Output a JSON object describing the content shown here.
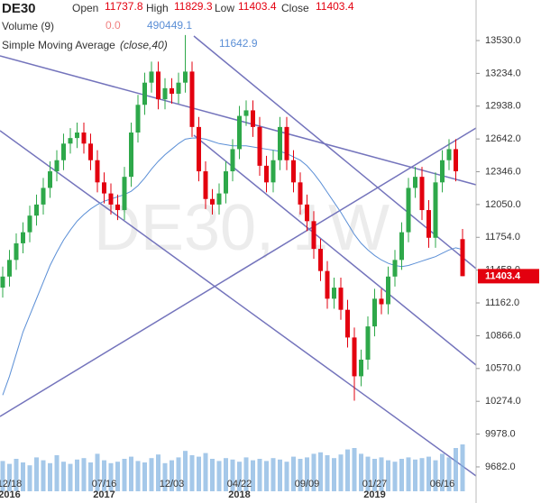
{
  "chart_data": {
    "type": "candlestick",
    "symbol": "DE30",
    "watermark": "DE30, 1W",
    "legend_labels": {
      "open": "Open",
      "high": "High",
      "low": "Low",
      "close": "Close"
    },
    "volume_label": "Volume (9)",
    "volume_value": "0.0",
    "volume_ma": 490449.1,
    "sma_label": "Simple Moving Average",
    "sma_params": "(close,40)",
    "up_color": "#2ea84a",
    "down_color": "#e3000f",
    "ylim": [
      9462,
      13896
    ],
    "yticks": [
      {
        "value": 13530,
        "label": "13530.0"
      },
      {
        "value": 13234,
        "label": "13234.0"
      },
      {
        "value": 12938,
        "label": "12938.0"
      },
      {
        "value": 12642,
        "label": "12642.0"
      },
      {
        "value": 12346,
        "label": "12346.0"
      },
      {
        "value": 12050,
        "label": "12050.0"
      },
      {
        "value": 11754,
        "label": "11754.0"
      },
      {
        "value": 11458,
        "label": "11458.0"
      },
      {
        "value": 11162,
        "label": "11162.0"
      },
      {
        "value": 10866,
        "label": "10866.0"
      },
      {
        "value": 10570,
        "label": "10570.0"
      },
      {
        "value": 10274,
        "label": "10274.0"
      },
      {
        "value": 9978,
        "label": "9978.0"
      },
      {
        "value": 9682,
        "label": "9682.0"
      }
    ],
    "x_labels": [
      {
        "index": 1,
        "date": "12/18",
        "year": "2016"
      },
      {
        "index": 15,
        "date": "07/16",
        "year": "2017"
      },
      {
        "index": 25,
        "date": "12/03"
      },
      {
        "index": 35,
        "date": "04/22",
        "year": "2018"
      },
      {
        "index": 45,
        "date": "09/09"
      },
      {
        "index": 55,
        "date": "01/27",
        "year": "2019"
      },
      {
        "index": 65,
        "date": "06/16"
      }
    ],
    "open": [
      11300,
      11400,
      11550,
      11700,
      11800,
      11950,
      12050,
      12200,
      12350,
      12450,
      12600,
      12650,
      12700,
      12600,
      12450,
      12250,
      12150,
      12050,
      12000,
      12300,
      12700,
      12950,
      13150,
      13250,
      13000,
      13100,
      13050,
      13150,
      13250,
      12750,
      12350,
      12100,
      12050,
      12150,
      12350,
      12550,
      12850,
      12900,
      12750,
      12400,
      12250,
      12450,
      12750,
      12450,
      12250,
      12050,
      11900,
      11650,
      11450,
      11200,
      11300,
      11100,
      10850,
      10500,
      10650,
      10950,
      11200,
      11150,
      11400,
      11550,
      11800,
      12200,
      12300,
      12000,
      11750,
      12250,
      12450,
      12550,
      11737.8
    ],
    "high": [
      11490,
      11640,
      11790,
      11890,
      12040,
      12140,
      12290,
      12440,
      12540,
      12690,
      12740,
      12790,
      12790,
      12690,
      12540,
      12340,
      12240,
      12140,
      12390,
      12790,
      13040,
      13240,
      13340,
      13340,
      13190,
      13190,
      13240,
      13580,
      13340,
      12840,
      12440,
      12190,
      12240,
      12440,
      12640,
      12940,
      12990,
      12990,
      12840,
      12490,
      12540,
      12840,
      12840,
      12540,
      12340,
      12140,
      11990,
      11740,
      11540,
      11390,
      11390,
      11190,
      10940,
      10740,
      11040,
      11290,
      11290,
      11490,
      11640,
      11890,
      12290,
      12390,
      12390,
      12090,
      12340,
      12540,
      12640,
      12640,
      11829.3
    ],
    "low": [
      11210,
      11310,
      11460,
      11610,
      11710,
      11860,
      11960,
      12110,
      12260,
      12360,
      12510,
      12560,
      12510,
      12360,
      12160,
      12060,
      11960,
      11910,
      11910,
      12210,
      12610,
      12860,
      13060,
      12910,
      12910,
      12960,
      12960,
      13060,
      12660,
      12260,
      12010,
      11960,
      11960,
      12060,
      12260,
      12460,
      12760,
      12660,
      12310,
      12160,
      12160,
      12360,
      12360,
      12160,
      11960,
      11810,
      11560,
      11360,
      11110,
      11110,
      11010,
      10760,
      10280,
      10410,
      10560,
      10860,
      11060,
      11060,
      11310,
      11460,
      11710,
      12110,
      11910,
      11660,
      11660,
      12160,
      12360,
      12260,
      11403.4
    ],
    "close": [
      11400,
      11550,
      11700,
      11800,
      11950,
      12050,
      12200,
      12350,
      12450,
      12600,
      12650,
      12700,
      12600,
      12450,
      12250,
      12150,
      12050,
      12000,
      12300,
      12700,
      12950,
      13150,
      13250,
      13000,
      13100,
      13050,
      13150,
      13250,
      12750,
      12350,
      12100,
      12050,
      12150,
      12350,
      12550,
      12850,
      12900,
      12750,
      12400,
      12250,
      12450,
      12750,
      12450,
      12250,
      12050,
      11900,
      11650,
      11450,
      11200,
      11300,
      11100,
      10850,
      10500,
      10650,
      10950,
      11200,
      11150,
      11400,
      11550,
      11800,
      12200,
      12300,
      12000,
      11750,
      12250,
      12450,
      12550,
      12350,
      11403.4
    ],
    "sma": {
      "name": "Simple Moving Average",
      "color": "#5b8fd6",
      "values": [
        10330,
        10500,
        10700,
        10900,
        11050,
        11200,
        11350,
        11500,
        11620,
        11730,
        11820,
        11900,
        11960,
        12010,
        12050,
        12080,
        12100,
        12120,
        12140,
        12170,
        12220,
        12290,
        12370,
        12440,
        12500,
        12550,
        12600,
        12640,
        12650,
        12650,
        12640,
        12620,
        12600,
        12590,
        12580,
        12580,
        12580,
        12570,
        12560,
        12550,
        12540,
        12530,
        12510,
        12480,
        12450,
        12400,
        12330,
        12250,
        12160,
        12070,
        11980,
        11880,
        11780,
        11700,
        11640,
        11590,
        11550,
        11520,
        11500,
        11490,
        11500,
        11520,
        11540,
        11560,
        11580,
        11610,
        11640,
        11660,
        11642.9
      ]
    },
    "volume": {
      "color": "#7fb0e0",
      "ylim": [
        0,
        1500000
      ],
      "values": [
        420000,
        380000,
        450000,
        400000,
        360000,
        470000,
        430000,
        390000,
        500000,
        410000,
        380000,
        440000,
        460000,
        400000,
        520000,
        430000,
        390000,
        410000,
        450000,
        480000,
        420000,
        400000,
        460000,
        510000,
        390000,
        430000,
        470000,
        560000,
        500000,
        480000,
        530000,
        450000,
        420000,
        460000,
        440000,
        410000,
        470000,
        430000,
        450000,
        420000,
        460000,
        440000,
        410000,
        480000,
        450000,
        470000,
        520000,
        540000,
        500000,
        460000,
        510000,
        580000,
        600000,
        520000,
        480000,
        450000,
        470000,
        430000,
        410000,
        450000,
        470000,
        440000,
        460000,
        480000,
        430000,
        520000,
        470000,
        600000,
        650000
      ]
    }
  }
}
